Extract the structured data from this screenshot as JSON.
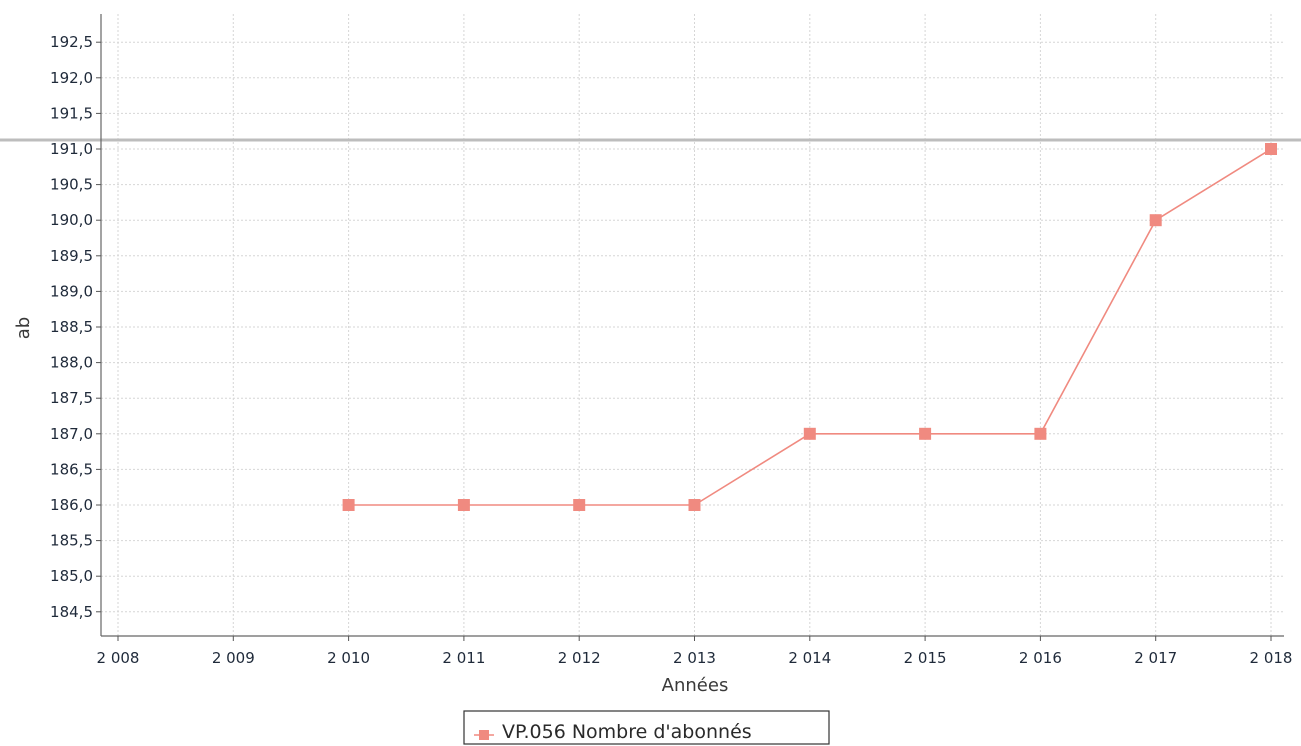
{
  "chart_data": {
    "type": "line",
    "title": "",
    "xlabel": "Années",
    "ylabel": "ab",
    "x_ticks": [
      "2 008",
      "2 009",
      "2 010",
      "2 011",
      "2 012",
      "2 013",
      "2 014",
      "2 015",
      "2 016",
      "2 017",
      "2 018"
    ],
    "y_ticks": [
      "192,5",
      "192,0",
      "191,5",
      "191,0",
      "190,5",
      "190,0",
      "189,5",
      "189,0",
      "188,5",
      "188,0",
      "187,5",
      "187,0",
      "186,5",
      "186,0",
      "185,5",
      "185,0",
      "184,5"
    ],
    "xlim": [
      2008,
      2018
    ],
    "ylim": [
      184.2,
      192.8
    ],
    "grid": true,
    "legend_position": "bottom-center",
    "series": [
      {
        "name": "VP.056 Nombre d'abonnés",
        "color": "#f08a80",
        "marker": "square",
        "points": [
          {
            "x": 2010,
            "y": 186
          },
          {
            "x": 2011,
            "y": 186
          },
          {
            "x": 2012,
            "y": 186
          },
          {
            "x": 2013,
            "y": 186
          },
          {
            "x": 2014,
            "y": 187
          },
          {
            "x": 2015,
            "y": 187
          },
          {
            "x": 2016,
            "y": 187
          },
          {
            "x": 2017,
            "y": 190
          },
          {
            "x": 2018,
            "y": 191
          }
        ]
      }
    ]
  }
}
